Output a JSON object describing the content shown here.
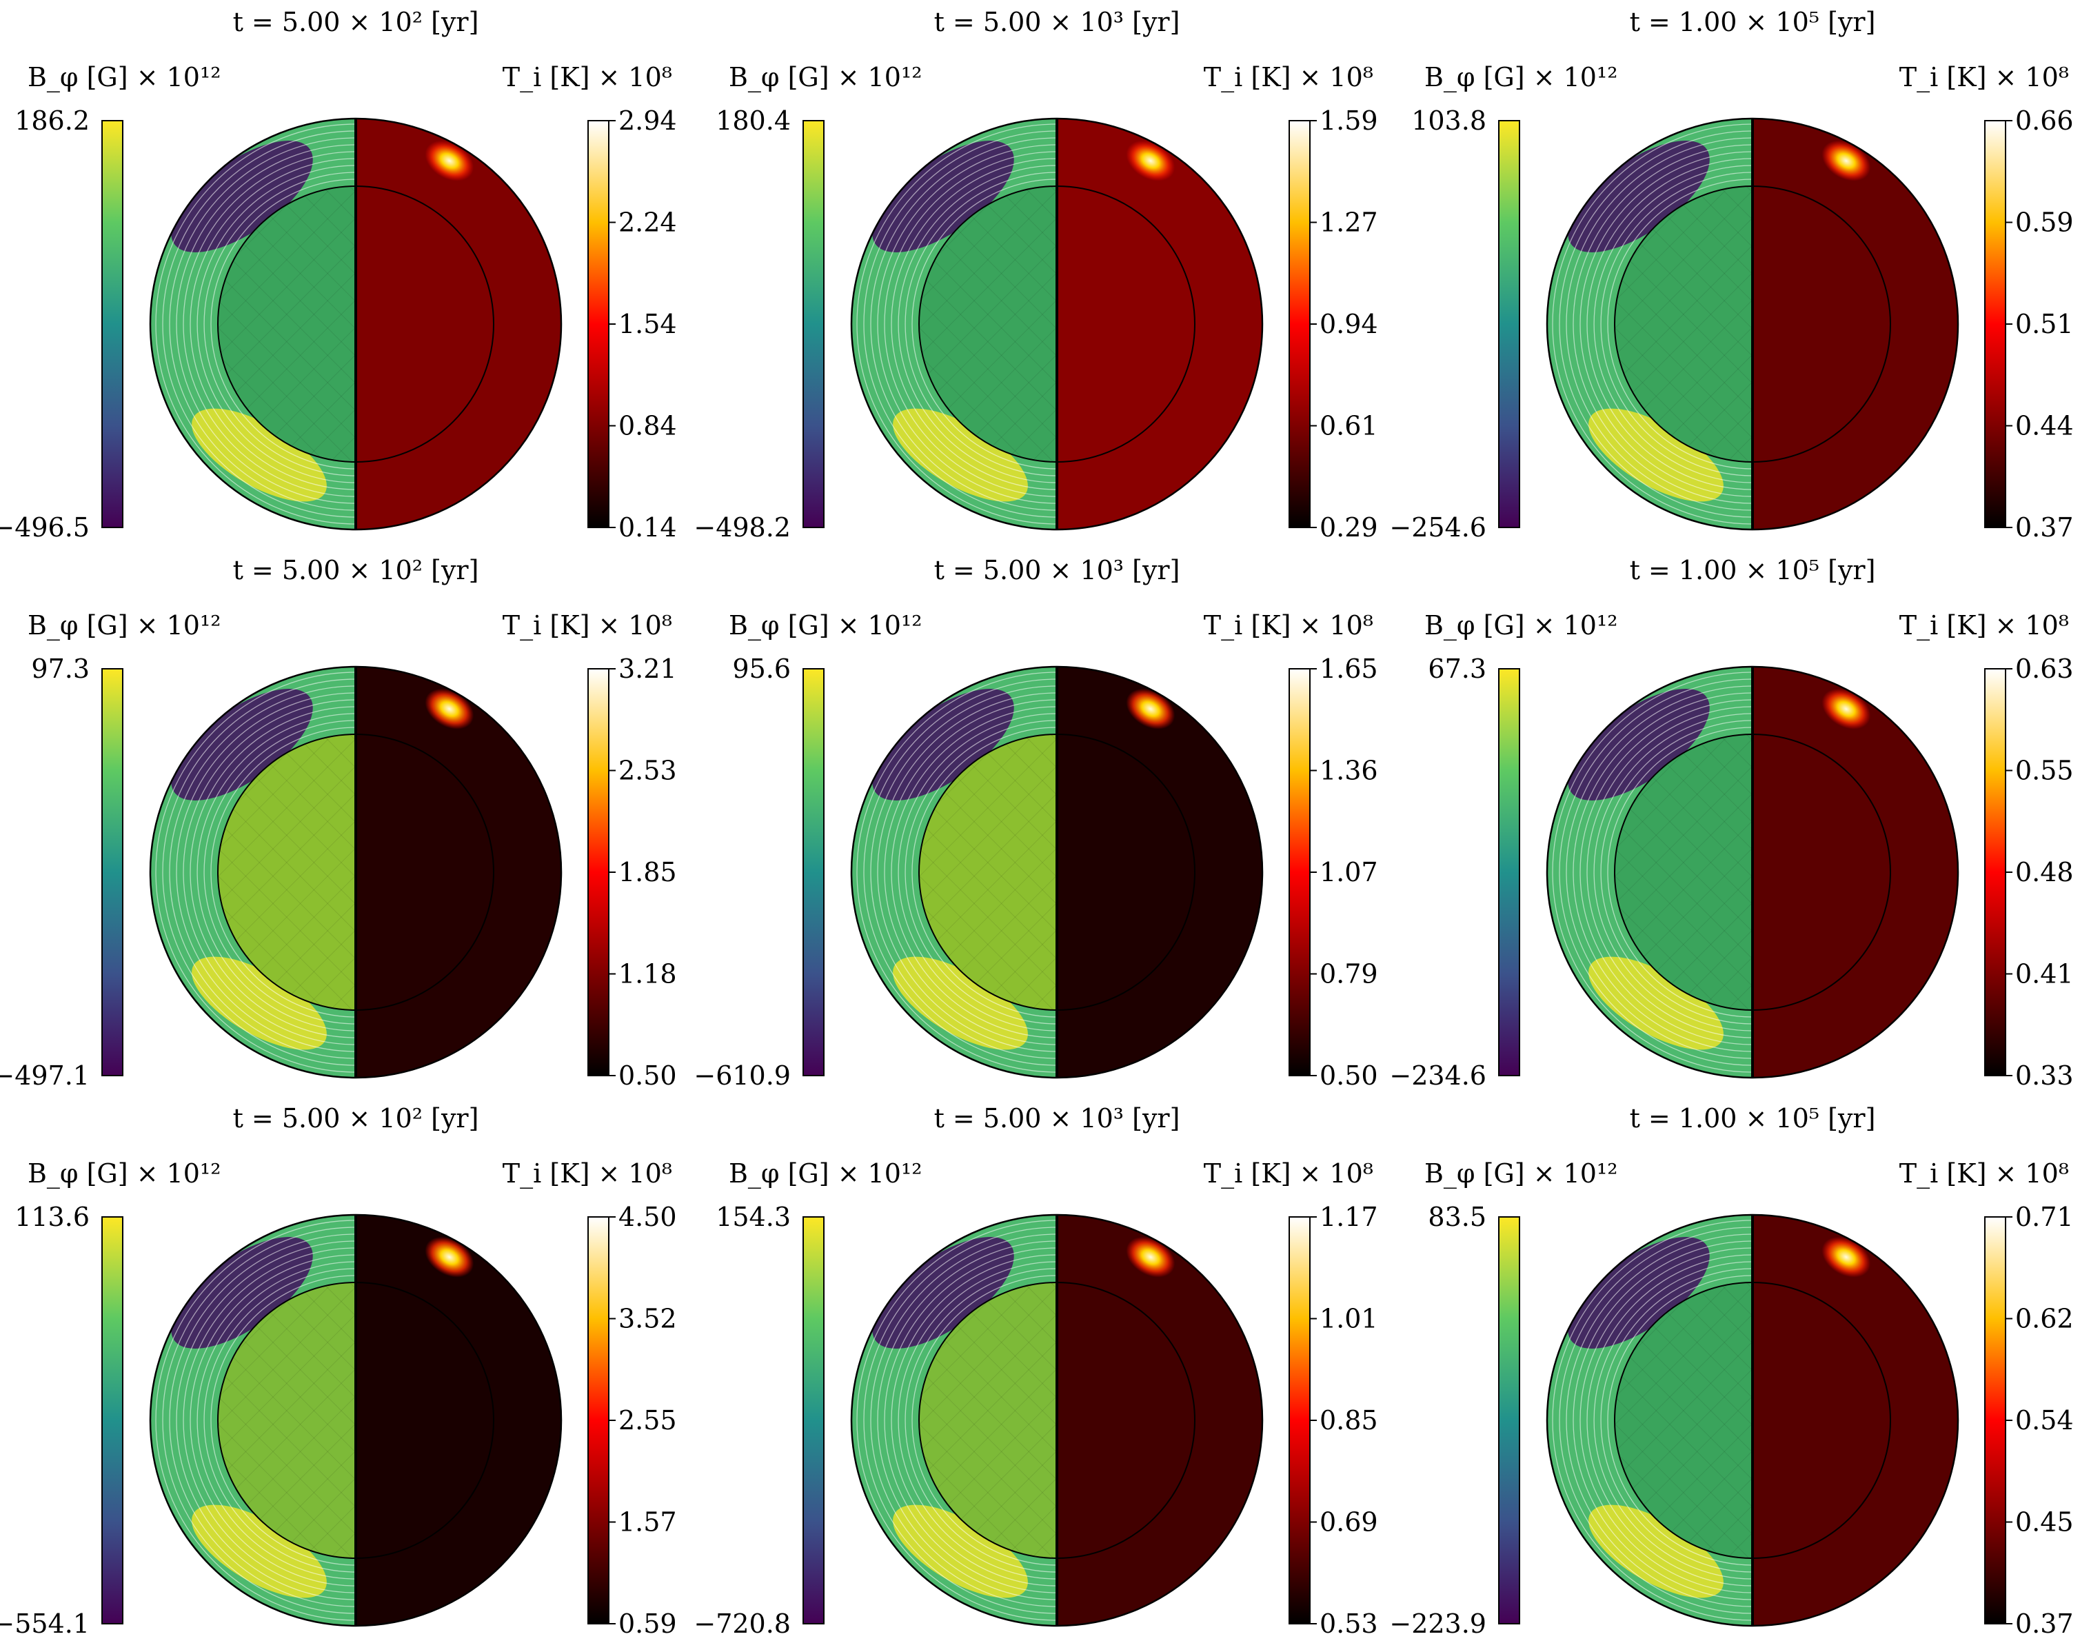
{
  "figure": {
    "colors": {
      "bphi_colormap": [
        "#440154",
        "#3b528b",
        "#21918c",
        "#5ec962",
        "#fde725"
      ],
      "temp_colormap": [
        "#000000",
        "#7f0000",
        "#ff0000",
        "#ffbf00",
        "#ffffff"
      ],
      "core_fill": "#3aa45c",
      "contour_line": "#ffffff",
      "outline": "#000000"
    },
    "panels": [
      {
        "time": "t = 5.00 × 10² [yr]",
        "bphi_label": "B_φ [G] × 10¹²",
        "bphi_max": "186.2",
        "bphi_min": "−496.5",
        "temp_label": "T_i [K] × 10⁸",
        "temp_ticks": [
          "2.94",
          "2.24",
          "1.54",
          "0.84",
          "0.14"
        ],
        "temp_level": 0.25,
        "core_color": "#3aa45c"
      },
      {
        "time": "t = 5.00 × 10³ [yr]",
        "bphi_label": "B_φ [G] × 10¹²",
        "bphi_max": "180.4",
        "bphi_min": "−498.2",
        "temp_label": "T_i [K] × 10⁸",
        "temp_ticks": [
          "1.59",
          "1.27",
          "0.94",
          "0.61",
          "0.29"
        ],
        "temp_level": 0.27,
        "core_color": "#3aa45c"
      },
      {
        "time": "t = 1.00 × 10⁵ [yr]",
        "bphi_label": "B_φ [G] × 10¹²",
        "bphi_max": "103.8",
        "bphi_min": "−254.6",
        "temp_label": "T_i [K] × 10⁸",
        "temp_ticks": [
          "0.66",
          "0.59",
          "0.51",
          "0.44",
          "0.37"
        ],
        "temp_level": 0.2,
        "core_color": "#3aa45c"
      },
      {
        "time": "t = 5.00 × 10² [yr]",
        "bphi_label": "B_φ [G] × 10¹²",
        "bphi_max": "97.3",
        "bphi_min": "−497.1",
        "temp_label": "T_i [K] × 10⁸",
        "temp_ticks": [
          "3.21",
          "2.53",
          "1.85",
          "1.18",
          "0.50"
        ],
        "temp_level": 0.07,
        "core_color": "#8cbf2f"
      },
      {
        "time": "t = 5.00 × 10³ [yr]",
        "bphi_label": "B_φ [G] × 10¹²",
        "bphi_max": "95.6",
        "bphi_min": "−610.9",
        "temp_label": "T_i [K] × 10⁸",
        "temp_ticks": [
          "1.65",
          "1.36",
          "1.07",
          "0.79",
          "0.50"
        ],
        "temp_level": 0.06,
        "core_color": "#8cbf2f"
      },
      {
        "time": "t = 1.00 × 10⁵ [yr]",
        "bphi_label": "B_φ [G] × 10¹²",
        "bphi_max": "67.3",
        "bphi_min": "−234.6",
        "temp_label": "T_i [K] × 10⁸",
        "temp_ticks": [
          "0.63",
          "0.55",
          "0.48",
          "0.41",
          "0.33"
        ],
        "temp_level": 0.18,
        "core_color": "#3aa45c"
      },
      {
        "time": "t = 5.00 × 10² [yr]",
        "bphi_label": "B_φ [G] × 10¹²",
        "bphi_max": "113.6",
        "bphi_min": "−554.1",
        "temp_label": "T_i [K] × 10⁸",
        "temp_ticks": [
          "4.50",
          "3.52",
          "2.55",
          "1.57",
          "0.59"
        ],
        "temp_level": 0.05,
        "core_color": "#7dba38"
      },
      {
        "time": "t = 5.00 × 10³ [yr]",
        "bphi_label": "B_φ [G] × 10¹²",
        "bphi_max": "154.3",
        "bphi_min": "−720.8",
        "temp_label": "T_i [K] × 10⁸",
        "temp_ticks": [
          "1.17",
          "1.01",
          "0.85",
          "0.69",
          "0.53"
        ],
        "temp_level": 0.13,
        "core_color": "#7dba38"
      },
      {
        "time": "t = 1.00 × 10⁵ [yr]",
        "bphi_label": "B_φ [G] × 10¹²",
        "bphi_max": "83.5",
        "bphi_min": "−223.9",
        "temp_label": "T_i [K] × 10⁸",
        "temp_ticks": [
          "0.71",
          "0.62",
          "0.54",
          "0.45",
          "0.37"
        ],
        "temp_level": 0.17,
        "core_color": "#3aa45c"
      }
    ]
  }
}
